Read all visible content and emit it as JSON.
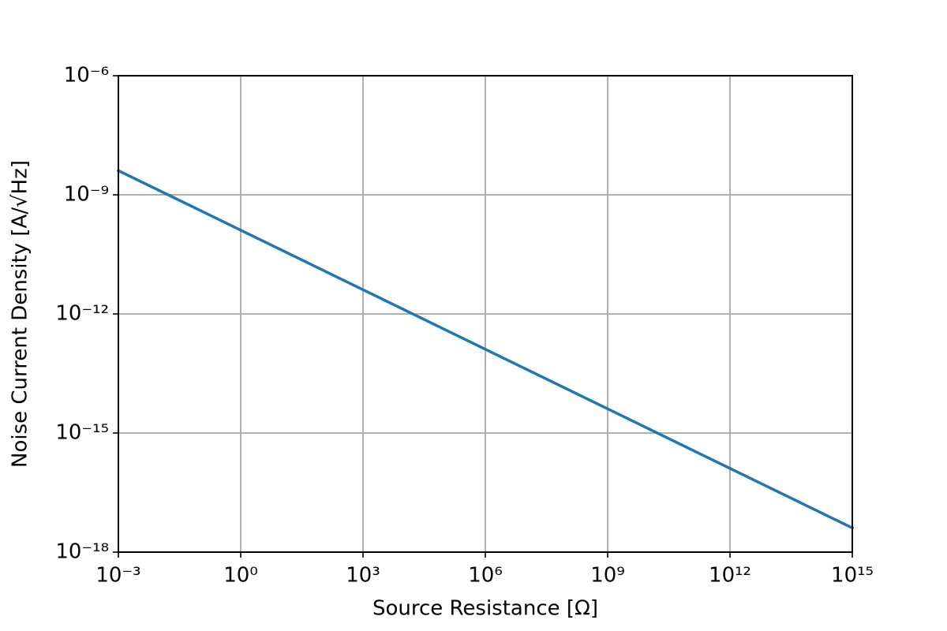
{
  "chart_data": {
    "type": "line",
    "x_label": "Source Resistance [Ω]",
    "y_label": "Noise Current Density [A/√Hz]",
    "x": [
      0.001,
      1,
      1000,
      1000000,
      1000000000,
      1000000000000,
      1000000000000000
    ],
    "series": [
      {
        "color": "#1f77b4",
        "values": [
          4.07e-09,
          1.287e-10,
          4.07e-12,
          1.287e-13,
          4.07e-15,
          1.287e-16,
          4.07e-18
        ]
      }
    ],
    "xlog": true,
    "ylog": true,
    "grid": true,
    "xlim": [
      0.001,
      1000000000000000
    ],
    "ylim": [
      1e-18,
      1e-06
    ],
    "xticks": [
      {
        "value": 0.001,
        "label": "10⁻³"
      },
      {
        "value": 1,
        "label": "10⁰"
      },
      {
        "value": 1000,
        "label": "10³"
      },
      {
        "value": 1000000,
        "label": "10⁶"
      },
      {
        "value": 1000000000,
        "label": "10⁹"
      },
      {
        "value": 1000000000000,
        "label": "10¹²"
      },
      {
        "value": 1000000000000000,
        "label": "10¹⁵"
      }
    ],
    "yticks": [
      {
        "value": 1e-18,
        "label": "10⁻¹⁸"
      },
      {
        "value": 1e-15,
        "label": "10⁻¹⁵"
      },
      {
        "value": 1e-12,
        "label": "10⁻¹²"
      },
      {
        "value": 1e-09,
        "label": "10⁻⁹"
      },
      {
        "value": 1e-06,
        "label": "10⁻⁶"
      }
    ]
  }
}
